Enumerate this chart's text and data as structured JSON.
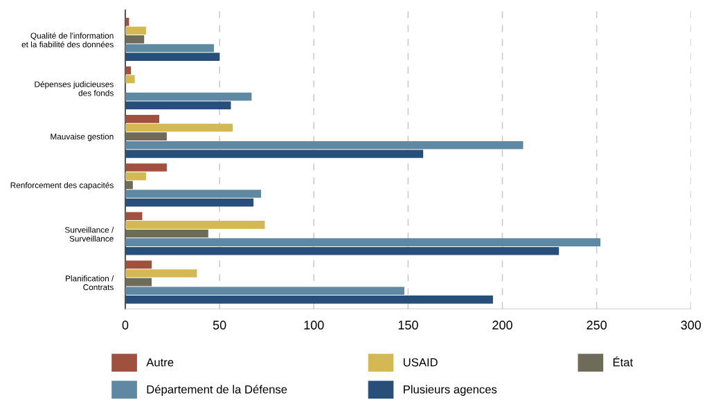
{
  "chart_data": {
    "type": "bar",
    "orientation": "horizontal",
    "categories": [
      "Qualité de l'information\net la fiabilité des données",
      "Dépenses judicieuses\ndes fonds",
      "Mauvaise gestion",
      "Renforcement des capacités",
      "Surveillance /\nSurveillance",
      "Planification /\nContrats"
    ],
    "series": [
      {
        "name": "Autre",
        "color": "#a0503f",
        "values": [
          2,
          3,
          18,
          22,
          9,
          14
        ]
      },
      {
        "name": "USAID",
        "color": "#d4b853",
        "values": [
          11,
          5,
          57,
          11,
          74,
          38
        ]
      },
      {
        "name": "État",
        "color": "#6e6b58",
        "values": [
          10,
          0,
          22,
          4,
          44,
          14
        ]
      },
      {
        "name": "Département de la Défense",
        "color": "#5f88a2",
        "values": [
          47,
          67,
          211,
          72,
          252,
          148
        ]
      },
      {
        "name": "Plusieurs agences",
        "color": "#284f7a",
        "values": [
          50,
          56,
          158,
          68,
          230,
          195
        ]
      }
    ],
    "xlim": [
      0,
      300
    ],
    "xticks": [
      0,
      50,
      100,
      150,
      200,
      250,
      300
    ],
    "grid": "x",
    "legend": "bottom"
  }
}
